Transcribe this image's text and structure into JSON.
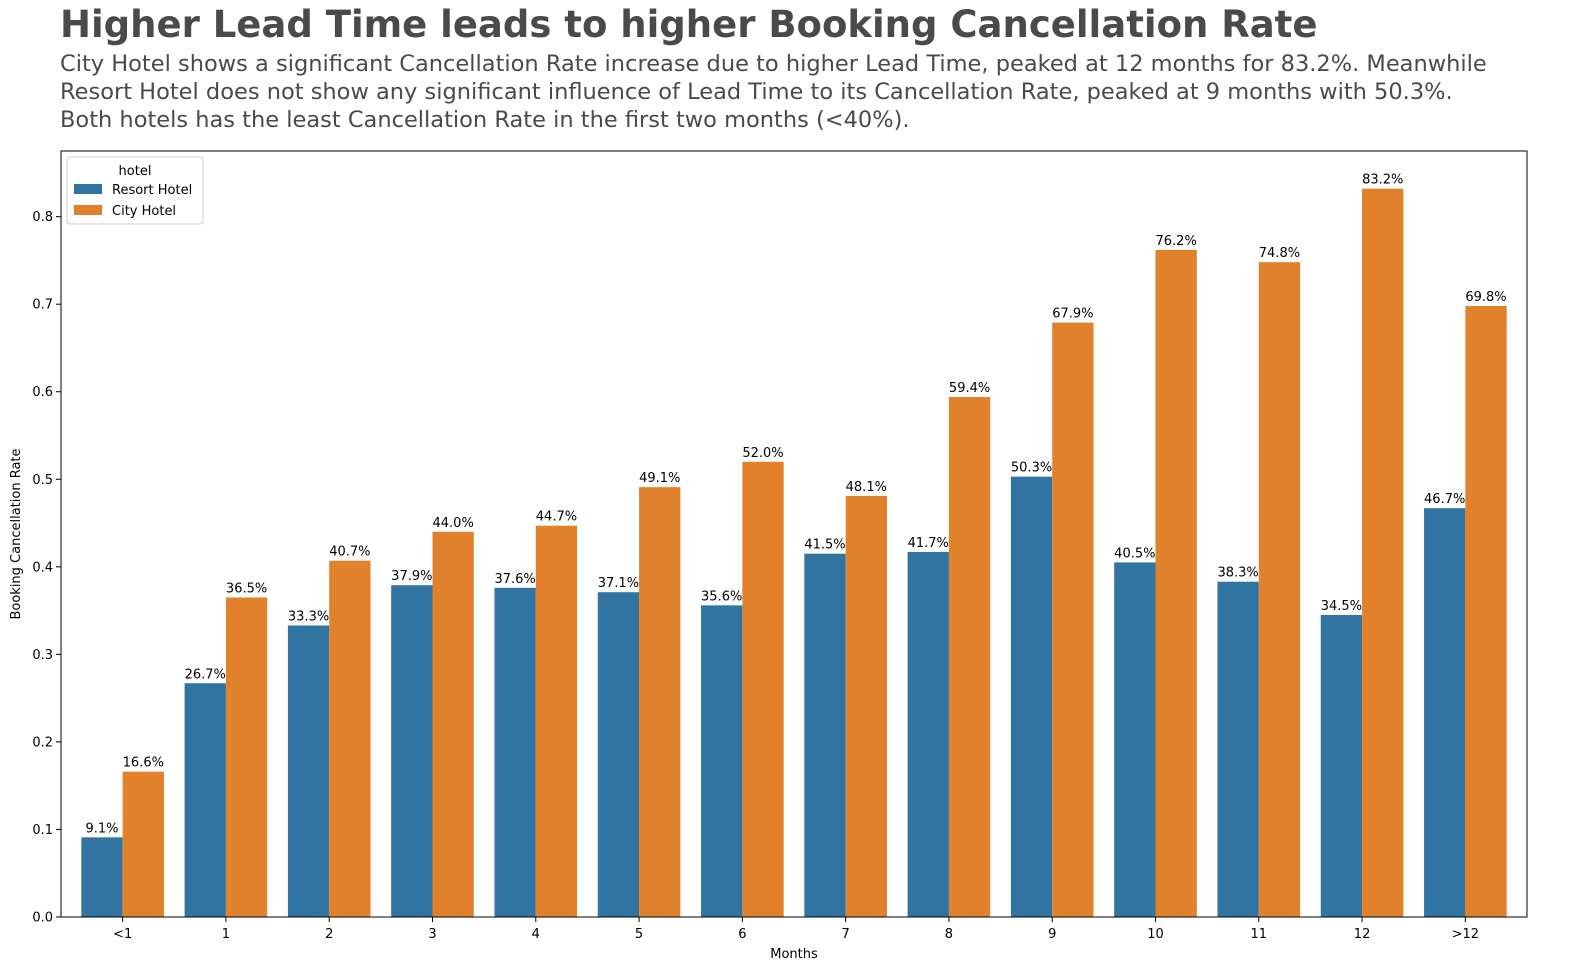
{
  "title": "Higher Lead Time leads to higher Booking Cancellation Rate",
  "subtitle_lines": [
    "City Hotel shows a significant Cancellation Rate increase due to higher Lead Time, peaked at 12 months for 83.2%. Meanwhile",
    "Resort Hotel does not show any significant influence of Lead Time to its Cancellation Rate, peaked at 9 months with 50.3%.",
    "Both hotels has the least Cancellation Rate in the first two months (<40%)."
  ],
  "chart_data": {
    "type": "bar",
    "xlabel": "Months",
    "ylabel": "Booking Cancellation Rate",
    "ylim": [
      0,
      0.875
    ],
    "yticks": [
      "0.0",
      "0.1",
      "0.2",
      "0.3",
      "0.4",
      "0.5",
      "0.6",
      "0.7",
      "0.8"
    ],
    "categories": [
      "<1",
      "1",
      "2",
      "3",
      "4",
      "5",
      "6",
      "7",
      "8",
      "9",
      "10",
      "11",
      "12",
      ">12"
    ],
    "legend": {
      "title": "hotel",
      "placement": "top-left"
    },
    "grid": false,
    "series": [
      {
        "name": "Resort Hotel",
        "color": "#3274a1",
        "values": [
          0.091,
          0.267,
          0.333,
          0.379,
          0.376,
          0.371,
          0.356,
          0.415,
          0.417,
          0.503,
          0.405,
          0.383,
          0.345,
          0.467
        ],
        "labels": [
          "9.1%",
          "26.7%",
          "33.3%",
          "37.9%",
          "37.6%",
          "37.1%",
          "35.6%",
          "41.5%",
          "41.7%",
          "50.3%",
          "40.5%",
          "38.3%",
          "34.5%",
          "46.7%"
        ]
      },
      {
        "name": "City Hotel",
        "color": "#e1812c",
        "values": [
          0.166,
          0.365,
          0.407,
          0.44,
          0.447,
          0.491,
          0.52,
          0.481,
          0.594,
          0.679,
          0.762,
          0.748,
          0.832,
          0.698
        ],
        "labels": [
          "16.6%",
          "36.5%",
          "40.7%",
          "44.0%",
          "44.7%",
          "49.1%",
          "52.0%",
          "48.1%",
          "59.4%",
          "67.9%",
          "76.2%",
          "74.8%",
          "83.2%",
          "69.8%"
        ]
      }
    ]
  }
}
